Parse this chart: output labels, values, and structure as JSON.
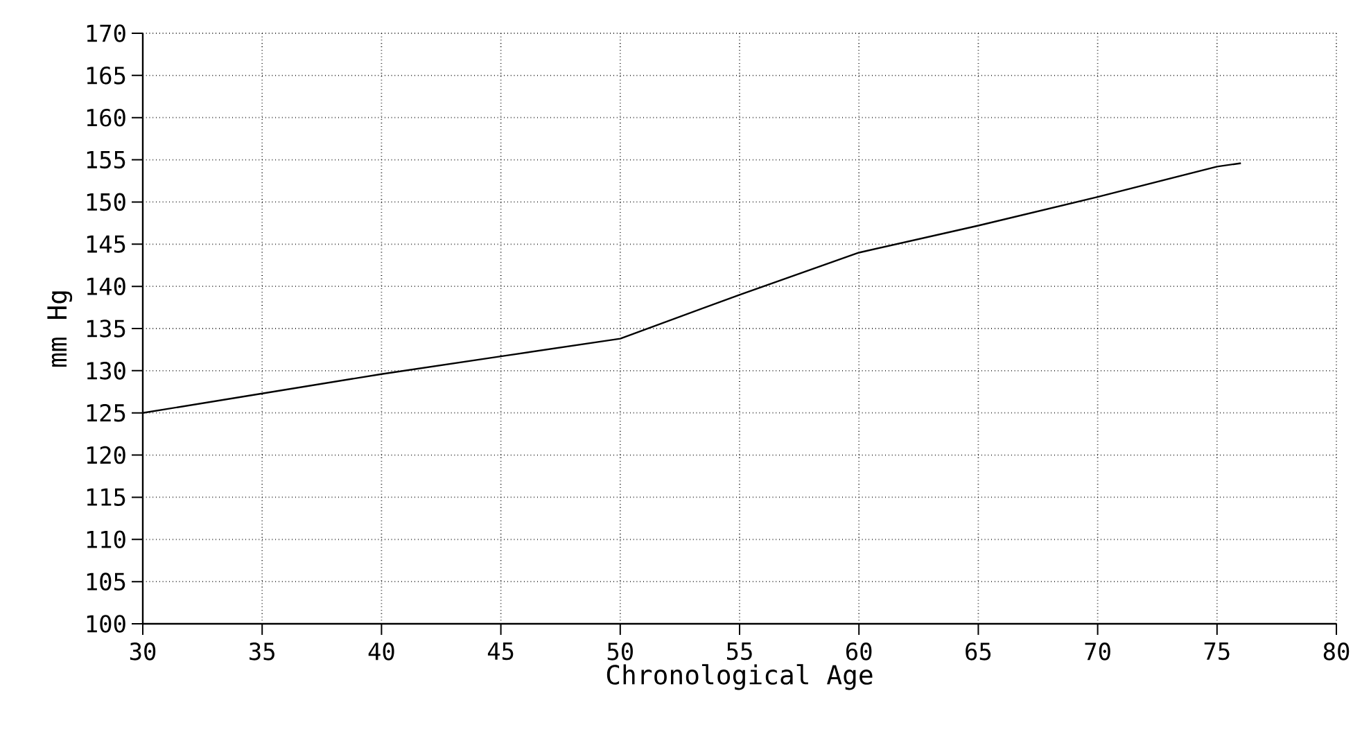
{
  "chart_data": {
    "type": "line",
    "xlabel": "Chronological Age",
    "ylabel": "mm Hg",
    "x": [
      30,
      35,
      40,
      45,
      50,
      55,
      60,
      65,
      70,
      75,
      76
    ],
    "series": [
      {
        "color": "#000000",
        "values": [
          125,
          127.3,
          129.6,
          131.7,
          133.8,
          139,
          144,
          147.2,
          150.6,
          154.2,
          154.6
        ]
      }
    ],
    "xlim": [
      30,
      80
    ],
    "ylim": [
      100,
      170
    ],
    "xticks": [
      30,
      35,
      40,
      45,
      50,
      55,
      60,
      65,
      70,
      75,
      80
    ],
    "yticks": [
      100,
      105,
      110,
      115,
      120,
      125,
      130,
      135,
      140,
      145,
      150,
      155,
      160,
      165,
      170
    ],
    "grid": true,
    "marker": "none",
    "line_style": "solid"
  }
}
